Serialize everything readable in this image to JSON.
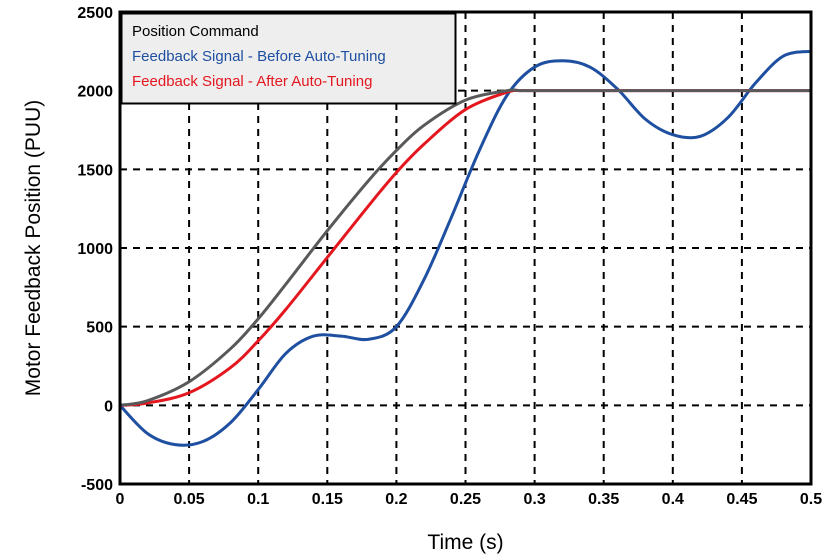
{
  "chart_data": {
    "type": "line",
    "title": "",
    "xlabel": "Time (s)",
    "ylabel": "Motor Feedback Position (PUU)",
    "xlim": [
      0,
      0.5
    ],
    "ylim": [
      -500,
      2500
    ],
    "x_ticks": [
      "0",
      "0.05",
      "0.1",
      "0.15",
      "0.2",
      "0.25",
      "0.3",
      "0.35",
      "0.4",
      "0.45",
      "0.5"
    ],
    "y_ticks": [
      "-500",
      "0",
      "500",
      "1000",
      "1500",
      "2000",
      "2500"
    ],
    "grid": true,
    "legend_position": "top-left",
    "series": [
      {
        "name": "Position Command",
        "color": "#58595b",
        "x": [
          0,
          0.02,
          0.05,
          0.08,
          0.1,
          0.12,
          0.15,
          0.18,
          0.2,
          0.22,
          0.25,
          0.28,
          0.29,
          0.3,
          0.35,
          0.4,
          0.45,
          0.5
        ],
        "y": [
          0,
          30,
          150,
          360,
          550,
          770,
          1110,
          1430,
          1620,
          1780,
          1940,
          2000,
          2000,
          2000,
          2000,
          2000,
          2000,
          2000
        ]
      },
      {
        "name": "Feedback Signal - Before Auto-Tuning",
        "color": "#1e4fa0",
        "x": [
          0,
          0.02,
          0.04,
          0.06,
          0.08,
          0.1,
          0.12,
          0.14,
          0.16,
          0.18,
          0.2,
          0.22,
          0.24,
          0.26,
          0.28,
          0.3,
          0.32,
          0.34,
          0.36,
          0.38,
          0.4,
          0.42,
          0.44,
          0.46,
          0.48,
          0.5
        ],
        "y": [
          0,
          -180,
          -250,
          -230,
          -110,
          100,
          330,
          440,
          440,
          420,
          500,
          800,
          1200,
          1620,
          1970,
          2150,
          2190,
          2150,
          2010,
          1820,
          1720,
          1710,
          1830,
          2050,
          2220,
          2250
        ]
      },
      {
        "name": "Feedback Signal - After Auto-Tuning",
        "color": "#e4171f",
        "x": [
          0,
          0.02,
          0.05,
          0.08,
          0.1,
          0.12,
          0.15,
          0.18,
          0.2,
          0.22,
          0.25,
          0.28,
          0.29,
          0.3,
          0.35,
          0.4,
          0.45,
          0.5
        ],
        "y": [
          0,
          15,
          80,
          240,
          410,
          610,
          940,
          1270,
          1480,
          1660,
          1880,
          1990,
          2000,
          2000,
          2000,
          2000,
          2000,
          2000
        ]
      }
    ]
  }
}
